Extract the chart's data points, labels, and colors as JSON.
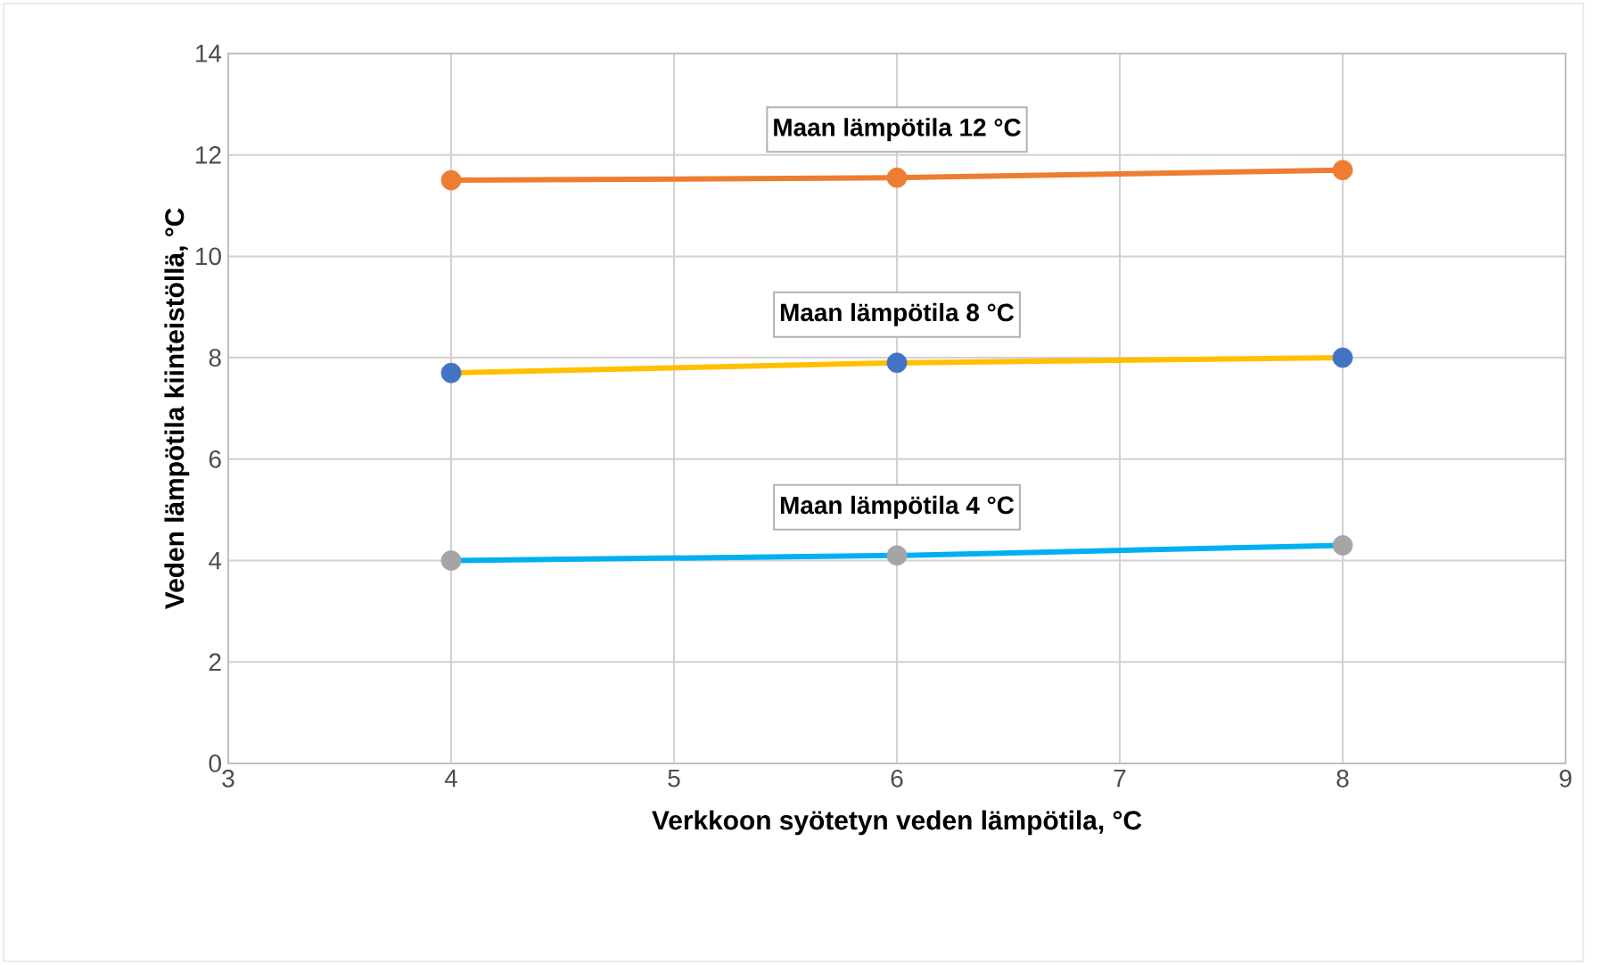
{
  "chart_data": {
    "type": "line",
    "xlabel": "Verkkoon syötetyn veden lämpötila, °C",
    "ylabel": "Veden lämpötila kiinteistöllä, °C",
    "x": [
      4,
      6,
      8
    ],
    "series": [
      {
        "name": "Maan lämpötila 12 °C",
        "color": "#ed7d31",
        "colors": [
          "#ed7d31",
          "#ed7d31",
          "#ed7d31"
        ],
        "values": [
          11.5,
          11.55,
          11.7
        ]
      },
      {
        "name": "Maan lämpötila 8 °C",
        "color": "#ffc000",
        "colors": [
          "#4472c4",
          "#4472c4",
          "#4472c4"
        ],
        "values": [
          7.7,
          7.9,
          8.0
        ]
      },
      {
        "name": "Maan lämpötila 4 °C",
        "color": "#00b0f0",
        "colors": [
          "#a5a5a5",
          "#a5a5a5",
          "#a5a5a5"
        ],
        "values": [
          4.0,
          4.1,
          4.3
        ]
      }
    ],
    "xlim": [
      3,
      9
    ],
    "xticks": [
      3,
      4,
      5,
      6,
      7,
      8,
      9
    ],
    "ylim": [
      0,
      14
    ],
    "yticks": [
      0,
      2,
      4,
      6,
      8,
      10,
      12,
      14
    ],
    "grid": true,
    "marker": "circle",
    "line_style": "solid"
  }
}
